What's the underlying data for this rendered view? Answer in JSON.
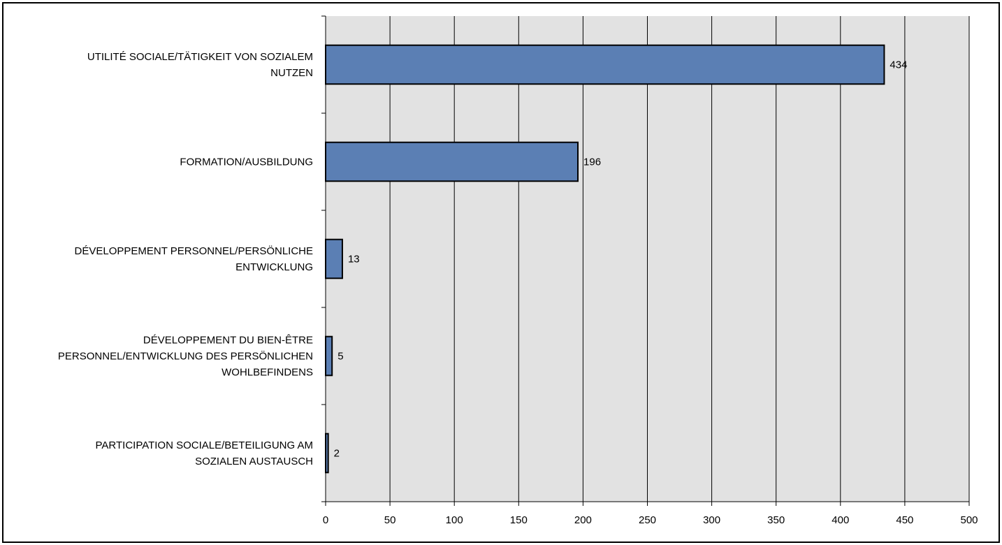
{
  "chart_data": {
    "type": "bar",
    "orientation": "horizontal",
    "categories": [
      [
        "UTILITÉ SOCIALE/TÄTIGKEIT VON SOZIALEM",
        "NUTZEN"
      ],
      [
        "FORMATION/AUSBILDUNG"
      ],
      [
        "DÉVELOPPEMENT PERSONNEL/PERSÖNLICHE",
        "ENTWICKLUNG"
      ],
      [
        "DÉVELOPPEMENT DU BIEN-ÊTRE",
        "PERSONNEL/ENTWICKLUNG DES PERSÖNLICHEN",
        "WOHLBEFINDENS"
      ],
      [
        "PARTICIPATION SOCIALE/BETEILIGUNG AM",
        "SOZIALEN AUSTAUSCH"
      ]
    ],
    "values": [
      434,
      196,
      13,
      5,
      2
    ],
    "data_labels": [
      "434",
      "196",
      "13",
      "5",
      "2"
    ],
    "xlim": [
      0,
      500
    ],
    "xticks": [
      0,
      50,
      100,
      150,
      200,
      250,
      300,
      350,
      400,
      450,
      500
    ],
    "xtick_labels": [
      "0",
      "50",
      "100",
      "150",
      "200",
      "250",
      "300",
      "350",
      "400",
      "450",
      "500"
    ],
    "grid": "vertical",
    "legend": "none",
    "colors": {
      "bar_fill": "#5b7fb4",
      "bar_stroke": "#000000",
      "plot_background": "#e2e2e2",
      "grid": "#000000"
    }
  }
}
